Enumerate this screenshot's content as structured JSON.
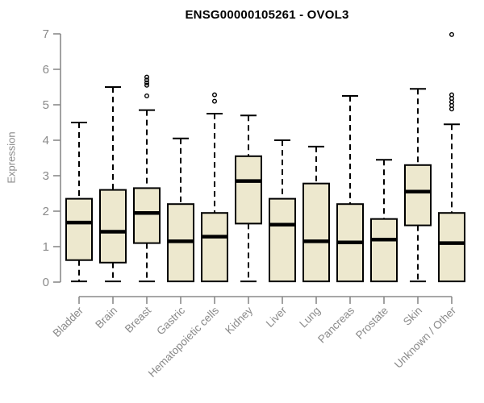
{
  "chart_data": {
    "type": "boxplot",
    "title": "ENSG00000105261 - OVOL3",
    "ylabel": "Expression",
    "ylim": [
      0,
      7
    ],
    "yticks": [
      0,
      1,
      2,
      3,
      4,
      5,
      6,
      7
    ],
    "grid": false,
    "legend": "none",
    "categories": [
      "Bladder",
      "Brain",
      "Breast",
      "Gastric",
      "Hematopoietic cells",
      "Kidney",
      "Liver",
      "Lung",
      "Pancreas",
      "Prostate",
      "Skin",
      "Unknown / Other"
    ],
    "series": [
      {
        "name": "Bladder",
        "whisker_low": 0.02,
        "q1": 0.62,
        "median": 1.68,
        "q3": 2.35,
        "whisker_high": 4.5,
        "outliers": []
      },
      {
        "name": "Brain",
        "whisker_low": 0.02,
        "q1": 0.55,
        "median": 1.42,
        "q3": 2.6,
        "whisker_high": 5.5,
        "outliers": []
      },
      {
        "name": "Breast",
        "whisker_low": 0.02,
        "q1": 1.1,
        "median": 1.95,
        "q3": 2.65,
        "whisker_high": 4.85,
        "outliers": [
          5.25,
          5.55,
          5.62,
          5.7,
          5.78
        ]
      },
      {
        "name": "Gastric",
        "whisker_low": 0.02,
        "q1": 0.02,
        "median": 1.15,
        "q3": 2.2,
        "whisker_high": 4.05,
        "outliers": []
      },
      {
        "name": "Hematopoietic cells",
        "whisker_low": 0.02,
        "q1": 0.02,
        "median": 1.28,
        "q3": 1.95,
        "whisker_high": 4.75,
        "outliers": [
          5.1,
          5.28
        ]
      },
      {
        "name": "Kidney",
        "whisker_low": 0.02,
        "q1": 1.65,
        "median": 2.85,
        "q3": 3.55,
        "whisker_high": 4.7,
        "outliers": []
      },
      {
        "name": "Liver",
        "whisker_low": 0.02,
        "q1": 0.02,
        "median": 1.62,
        "q3": 2.35,
        "whisker_high": 4.0,
        "outliers": []
      },
      {
        "name": "Lung",
        "whisker_low": 0.02,
        "q1": 0.02,
        "median": 1.15,
        "q3": 2.78,
        "whisker_high": 3.82,
        "outliers": []
      },
      {
        "name": "Pancreas",
        "whisker_low": 0.02,
        "q1": 0.02,
        "median": 1.12,
        "q3": 2.2,
        "whisker_high": 5.25,
        "outliers": []
      },
      {
        "name": "Prostate",
        "whisker_low": 0.02,
        "q1": 0.02,
        "median": 1.2,
        "q3": 1.78,
        "whisker_high": 3.45,
        "outliers": []
      },
      {
        "name": "Skin",
        "whisker_low": 0.02,
        "q1": 1.6,
        "median": 2.55,
        "q3": 3.3,
        "whisker_high": 5.45,
        "outliers": []
      },
      {
        "name": "Unknown / Other",
        "whisker_low": 0.02,
        "q1": 0.02,
        "median": 1.1,
        "q3": 1.95,
        "whisker_high": 4.45,
        "outliers": [
          4.88,
          4.98,
          5.08,
          5.18,
          5.28,
          6.98
        ]
      }
    ],
    "style": {
      "box_fill": "#EDE8CE",
      "box_stroke": "#000000",
      "median_color": "#000000",
      "whisker_color": "#000000",
      "outlier_color": "#000000",
      "axis_color": "#8A8A8A",
      "tick_label_color": "#8A8A8A",
      "title_color": "#000000",
      "background": "#FFFFFF"
    }
  }
}
